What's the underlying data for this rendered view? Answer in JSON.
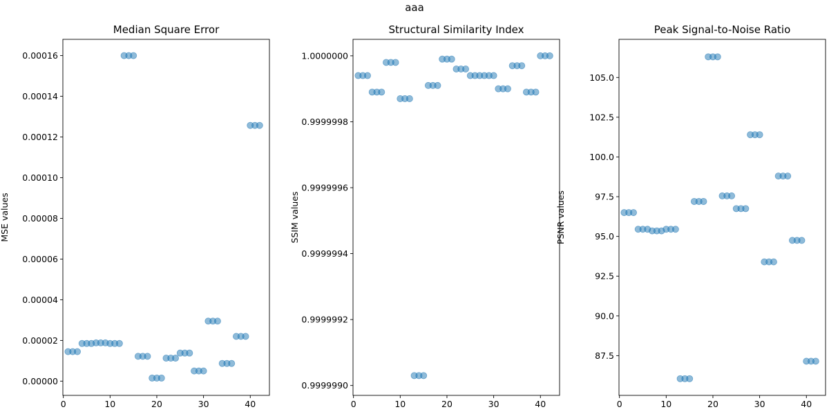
{
  "figure": {
    "suptitle": "aaa"
  },
  "chart_data": [
    {
      "type": "scatter",
      "title": "Median Square Error",
      "ylabel": "MSE values",
      "xlabel": "",
      "xlim": [
        -0.1,
        44.1
      ],
      "ylim": [
        -7e-06,
        0.000168
      ],
      "xticks": [
        0,
        10,
        20,
        30,
        40
      ],
      "yticks": [
        0.0,
        2e-05,
        4e-05,
        6e-05,
        8e-05,
        0.0001,
        0.00012,
        0.00014,
        0.00016
      ],
      "yticklabels": [
        "0.00000",
        "0.00002",
        "0.00004",
        "0.00006",
        "0.00008",
        "0.00010",
        "0.00012",
        "0.00014",
        "0.00016"
      ],
      "color": "#1f77b4",
      "alpha": 0.5,
      "x": [
        1,
        2,
        3,
        4,
        5,
        6,
        7,
        8,
        9,
        10,
        11,
        12,
        13,
        14,
        15,
        16,
        17,
        18,
        19,
        20,
        21,
        22,
        23,
        24,
        25,
        26,
        27,
        28,
        29,
        30,
        31,
        32,
        33,
        34,
        35,
        36,
        37,
        38,
        39,
        40,
        41,
        42
      ],
      "y": [
        1.45e-05,
        1.45e-05,
        1.45e-05,
        1.85e-05,
        1.85e-05,
        1.85e-05,
        1.88e-05,
        1.88e-05,
        1.88e-05,
        1.85e-05,
        1.85e-05,
        1.85e-05,
        0.00016,
        0.00016,
        0.00016,
        1.22e-05,
        1.22e-05,
        1.22e-05,
        1.5e-06,
        1.5e-06,
        1.5e-06,
        1.13e-05,
        1.13e-05,
        1.13e-05,
        1.38e-05,
        1.38e-05,
        1.38e-05,
        5e-06,
        5e-06,
        5e-06,
        2.95e-05,
        2.95e-05,
        2.95e-05,
        8.7e-06,
        8.7e-06,
        8.7e-06,
        2.2e-05,
        2.2e-05,
        2.2e-05,
        0.0001257,
        0.0001257,
        0.0001257
      ]
    },
    {
      "type": "scatter",
      "title": "Structural Similarity Index",
      "ylabel": "SSIM values",
      "xlabel": "",
      "xlim": [
        -0.1,
        44.1
      ],
      "ylim": [
        0.99999897,
        1.00000005
      ],
      "xticks": [
        0,
        10,
        20,
        30,
        40
      ],
      "yticks": [
        0.999999,
        0.9999992,
        0.9999994,
        0.9999996,
        0.9999998,
        1.0
      ],
      "yticklabels": [
        "0.9999990",
        "0.9999992",
        "0.9999994",
        "0.9999996",
        "0.9999998",
        "1.0000000"
      ],
      "color": "#1f77b4",
      "alpha": 0.5,
      "x": [
        1,
        2,
        3,
        4,
        5,
        6,
        7,
        8,
        9,
        10,
        11,
        12,
        13,
        14,
        15,
        16,
        17,
        18,
        19,
        20,
        21,
        22,
        23,
        24,
        25,
        26,
        27,
        28,
        29,
        30,
        31,
        32,
        33,
        34,
        35,
        36,
        37,
        38,
        39,
        40,
        41,
        42
      ],
      "y": [
        0.99999994,
        0.99999994,
        0.99999994,
        0.99999989,
        0.99999989,
        0.99999989,
        0.99999998,
        0.99999998,
        0.99999998,
        0.99999987,
        0.99999987,
        0.99999987,
        0.99999903,
        0.99999903,
        0.99999903,
        0.99999991,
        0.99999991,
        0.99999991,
        0.99999999,
        0.99999999,
        0.99999999,
        0.99999996,
        0.99999996,
        0.99999996,
        0.99999994,
        0.99999994,
        0.99999994,
        0.99999994,
        0.99999994,
        0.99999994,
        0.9999999,
        0.9999999,
        0.9999999,
        0.99999997,
        0.99999997,
        0.99999997,
        0.99999989,
        0.99999989,
        0.99999989,
        1.0,
        1.0,
        1.0
      ]
    },
    {
      "type": "scatter",
      "title": "Peak Signal-to-Noise Ratio",
      "ylabel": "PSNR values",
      "xlabel": "",
      "xlim": [
        -0.1,
        44.1
      ],
      "ylim": [
        85.0,
        107.4
      ],
      "xticks": [
        0,
        10,
        20,
        30,
        40
      ],
      "yticks": [
        87.5,
        90.0,
        92.5,
        95.0,
        97.5,
        100.0,
        102.5,
        105.0
      ],
      "yticklabels": [
        "87.5",
        "90.0",
        "92.5",
        "95.0",
        "97.5",
        "100.0",
        "102.5",
        "105.0"
      ],
      "color": "#1f77b4",
      "alpha": 0.5,
      "x": [
        1,
        2,
        3,
        4,
        5,
        6,
        7,
        8,
        9,
        10,
        11,
        12,
        13,
        14,
        15,
        16,
        17,
        18,
        19,
        20,
        21,
        22,
        23,
        24,
        25,
        26,
        27,
        28,
        29,
        30,
        31,
        32,
        33,
        34,
        35,
        36,
        37,
        38,
        39,
        40,
        41,
        42
      ],
      "y": [
        96.5,
        96.5,
        96.5,
        95.45,
        95.45,
        95.45,
        95.35,
        95.35,
        95.35,
        95.45,
        95.45,
        95.45,
        86.05,
        86.05,
        86.05,
        97.2,
        97.2,
        97.2,
        106.3,
        106.3,
        106.3,
        97.55,
        97.55,
        97.55,
        96.75,
        96.75,
        96.75,
        101.4,
        101.4,
        101.4,
        93.4,
        93.4,
        93.4,
        98.8,
        98.8,
        98.8,
        94.75,
        94.75,
        94.75,
        87.15,
        87.15,
        87.15
      ]
    }
  ]
}
